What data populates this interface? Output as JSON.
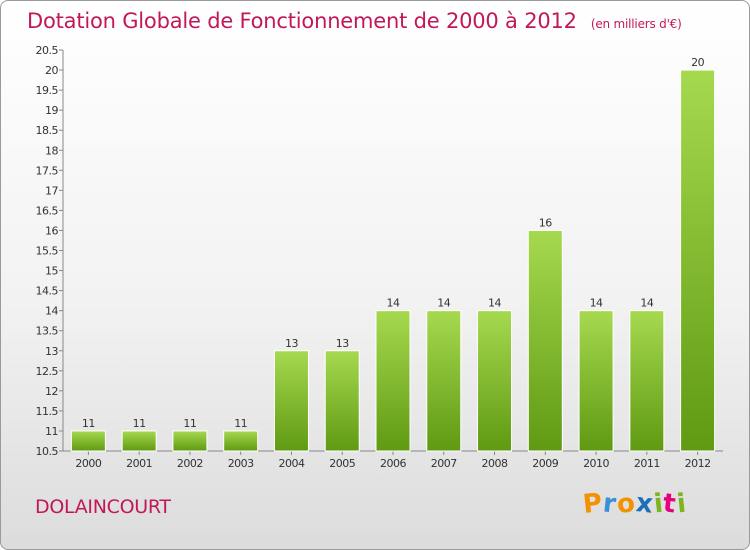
{
  "chart_data": {
    "type": "bar",
    "title": "Dotation Globale de Fonctionnement de 2000 à 2012",
    "subtitle": "(en milliers d'€)",
    "categories": [
      "2000",
      "2001",
      "2002",
      "2003",
      "2004",
      "2005",
      "2006",
      "2007",
      "2008",
      "2009",
      "2010",
      "2011",
      "2012"
    ],
    "values": [
      11,
      11,
      11,
      11,
      13,
      13,
      14,
      14,
      14,
      16,
      14,
      14,
      20
    ],
    "data_labels": [
      "11",
      "11",
      "11",
      "11",
      "13",
      "13",
      "14",
      "14",
      "14",
      "16",
      "14",
      "14",
      "20"
    ],
    "ylim": [
      10.5,
      20.5
    ],
    "yticks": [
      "10.5",
      "11",
      "11.5",
      "12",
      "12.5",
      "13",
      "13.5",
      "14",
      "14.5",
      "15",
      "15.5",
      "16",
      "16.5",
      "17",
      "17.5",
      "18",
      "18.5",
      "19",
      "19.5",
      "20",
      "20.5"
    ],
    "xlabel": "",
    "ylabel": "",
    "grid": false,
    "bar_color_light": "#a6d94f",
    "bar_color_dark": "#5f9a12"
  },
  "commune": "DOLAINCOURT",
  "logo": {
    "letters": [
      "P",
      "r",
      "o",
      "x",
      "i",
      "t",
      "i"
    ],
    "colors": [
      "#f39200",
      "#3b8fd4",
      "#f39200",
      "#1d6fb8",
      "#7cb51d",
      "#e6007e",
      "#7cb51d"
    ]
  }
}
